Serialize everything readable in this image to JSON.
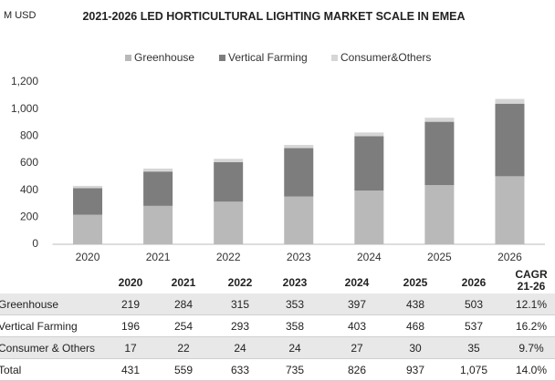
{
  "chart_data": {
    "type": "bar",
    "stacked": true,
    "title": "2021-2026 LED HORTICULTURAL LIGHTING MARKET SCALE IN EMEA",
    "unit_label": "M USD",
    "categories": [
      "2020",
      "2021",
      "2022",
      "2023",
      "2024",
      "2025",
      "2026"
    ],
    "series": [
      {
        "name": "Greenhouse",
        "color": "#b9b9b9",
        "values": [
          219,
          284,
          315,
          353,
          397,
          438,
          503
        ]
      },
      {
        "name": "Vertical Farming",
        "color": "#7d7d7d",
        "values": [
          196,
          254,
          293,
          358,
          403,
          468,
          537
        ]
      },
      {
        "name": "Consumer&Others",
        "color": "#d6d6d6",
        "values": [
          17,
          22,
          24,
          24,
          27,
          30,
          35
        ]
      }
    ],
    "ylim": [
      0,
      1200
    ],
    "yticks": [
      0,
      200,
      400,
      600,
      800,
      {
        "value": 1000,
        "label": "1,000"
      },
      {
        "value": 1200,
        "label": "1,200"
      }
    ],
    "grid": false,
    "legend": "top"
  },
  "table": {
    "header": [
      "2020",
      "2021",
      "2022",
      "2023",
      "2024",
      "2025",
      "2026",
      "CAGR 21-26"
    ],
    "rows": [
      {
        "label": "Greenhouse",
        "cells": [
          "219",
          "284",
          "315",
          "353",
          "397",
          "438",
          "503",
          "12.1%"
        ]
      },
      {
        "label": "Vertical Farming",
        "cells": [
          "196",
          "254",
          "293",
          "358",
          "403",
          "468",
          "537",
          "16.2%"
        ]
      },
      {
        "label": "Consumer & Others",
        "cells": [
          "17",
          "22",
          "24",
          "24",
          "27",
          "30",
          "35",
          "9.7%"
        ]
      },
      {
        "label": "Total",
        "cells": [
          "431",
          "559",
          "633",
          "735",
          "826",
          "937",
          "1,075",
          "14.0%"
        ]
      }
    ]
  }
}
